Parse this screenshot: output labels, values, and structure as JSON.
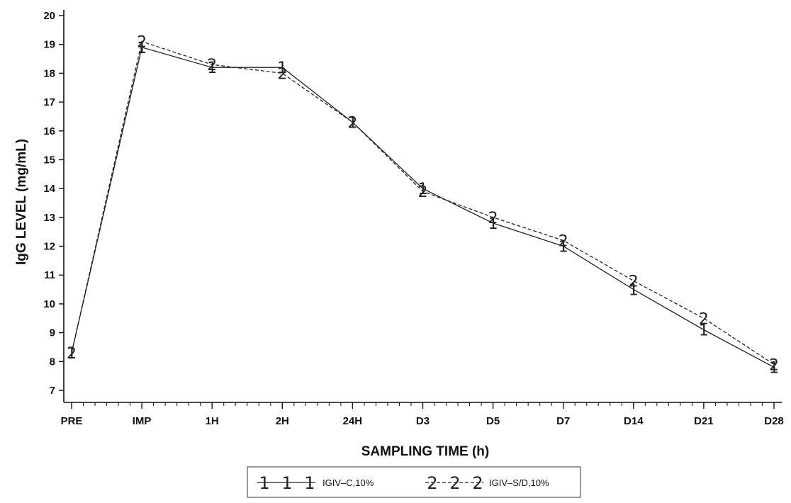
{
  "chart_data": {
    "type": "line",
    "title": "",
    "xlabel": "SAMPLING TIME (h)",
    "ylabel": "IgG LEVEL (mg/mL)",
    "categories": [
      "PRE",
      "IMP",
      "1H",
      "2H",
      "24H",
      "D3",
      "D5",
      "D7",
      "D14",
      "D21",
      "D28"
    ],
    "ylim": [
      7,
      20
    ],
    "yticks": [
      7,
      8,
      9,
      10,
      11,
      12,
      13,
      14,
      15,
      16,
      17,
      18,
      19,
      20
    ],
    "grid": false,
    "legend_position": "bottom",
    "series": [
      {
        "name": "IGIV–C,10%",
        "symbol": "1",
        "line_style": "solid",
        "values": [
          8.3,
          18.9,
          18.2,
          18.2,
          16.3,
          14.0,
          12.8,
          12.0,
          10.5,
          9.1,
          7.8
        ]
      },
      {
        "name": "IGIV–S/D,10%",
        "symbol": "2",
        "line_style": "dashed",
        "values": [
          8.3,
          19.1,
          18.3,
          18.0,
          16.3,
          13.9,
          13.0,
          12.2,
          10.8,
          9.5,
          7.9
        ]
      }
    ]
  }
}
